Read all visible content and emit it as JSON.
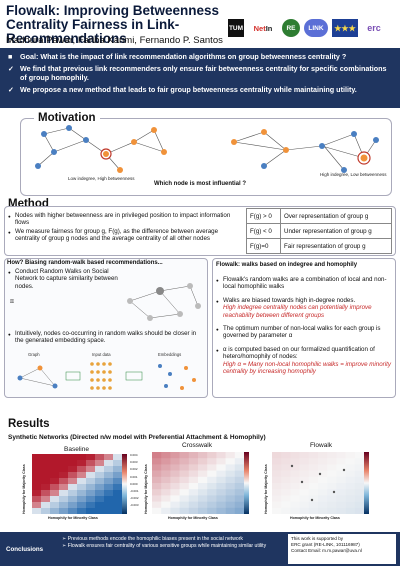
{
  "header": {
    "title": "Flowalk: Improving Betweenness Centrality Fairness in Link-Recommendations",
    "authors": "Madhura Pawar, Fariba Karimi, Fernando P. Santos",
    "logos": [
      "TUM",
      "NetIn",
      "RE",
      "LINK",
      "EU",
      "erc"
    ]
  },
  "goals": [
    {
      "mark": "■",
      "text": "Goal:  What is the impact of link recommendation algorithms on group betweenness centrality ?"
    },
    {
      "mark": "✓",
      "text": "We find that previous link recommenders only ensure fair betweenness centrality for specific combinations of group homophily."
    },
    {
      "mark": "✓",
      "text": "We propose a new method that leads to fair group betweenness centrality while maintaining utility."
    }
  ],
  "motivation": {
    "title": "Motivation",
    "left_caption": "Low indegree, High betweenness",
    "right_caption": "High indegree, Low betweenness",
    "question": "Which node is most influential ?",
    "colors": {
      "orange": "#f0923a",
      "blue": "#4a7fc1"
    }
  },
  "method": {
    "title": "Method",
    "bullets": [
      "Nodes with higher betweenness are in privileged position to impact information flows",
      "We measure fairness for group g, F(g), as the difference between average centrality of group g nodes and the average centrality of all other nodes"
    ],
    "table": [
      {
        "cond": "F(g) > 0",
        "desc": "Over representation of group g"
      },
      {
        "cond": "F(g) < 0",
        "desc": "Under representation of group g"
      },
      {
        "cond": "F(g)=0",
        "desc": "Fair representation of group g"
      }
    ]
  },
  "randomwalk": {
    "heading": "How? Biasing random-walk based recommendations...",
    "bullet1": "Conduct Random Walks on Social Network to capture similarity between nodes.",
    "bullet2": "Intuitively, nodes co-occurring in random walks should be closer in the generated embedding space.",
    "formula_lhs": "π",
    "pipeline": [
      "Graph",
      "Input data",
      "Embeddings"
    ]
  },
  "flowalk": {
    "heading": "Flowalk: walks based on indegree and homophily",
    "items": [
      {
        "text": "Flowalk's random walks are a combination of local and non-local homophilic walks",
        "red": ""
      },
      {
        "text": "Walks are biased towards high in-degree nodes.",
        "red": "High indegree centrality nodes can potentially improve reachability between different groups"
      },
      {
        "text": "The optimum number of non-local walks for each group is governed by parameter α",
        "red": ""
      },
      {
        "text": "α is computed based on our formalized quantification of hetero/homophily of nodes:",
        "red": "High α = Many non-local homophilic walks = improve minority centrality by increasing homophily"
      }
    ]
  },
  "results": {
    "title": "Results",
    "subtitle": "Synthetic Networks (Directed n/w  model with Preferential Attachment & Homophily)",
    "panels": [
      "Baseline",
      "Crosswalk",
      "Flowalk"
    ],
    "xlabel": "Homophily for Minority Class",
    "ylabel": "Homophily for Majority Class",
    "colorbar_ticks": [
      "0.004",
      "0.003",
      "0.002",
      "0.001",
      "0.000",
      "-0.001",
      "-0.002",
      "-0.003",
      "-0.004"
    ]
  },
  "conclusions": {
    "label": "Conclusions",
    "points": [
      "Previous methods encode the homophilic biases present in the social network",
      "Flowalk ensures fair centrality of various sensitive groups while maintaining similar utility"
    ],
    "support": [
      "This work is supported by",
      "ERC grant (RE-LINK, 101116987)",
      "Contact Email: m.m.pawar@uva.nl"
    ]
  }
}
